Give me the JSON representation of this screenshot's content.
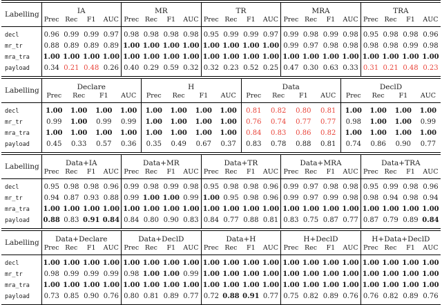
{
  "colors": {
    "text": "#1c1c1c",
    "highlight_red": "#e8443a",
    "rule": "#000000",
    "background": "#ffffff"
  },
  "labelling_header": "Labelling",
  "metrics": [
    "Prec",
    "Rec",
    "F1",
    "AUC"
  ],
  "chart_data": {
    "type": "table",
    "note_bold_marker": "*",
    "note_red_marker": "!"
  },
  "tables": [
    {
      "groups": [
        "IA",
        "MR",
        "TR",
        "MRA",
        "TRA"
      ],
      "rows": [
        {
          "label": "decl",
          "cells": [
            [
              "0.96",
              "0.99",
              "0.99",
              "0.97"
            ],
            [
              "0.98",
              "0.98",
              "0.98",
              "0.98"
            ],
            [
              "0.95",
              "0.99",
              "0.99",
              "0.97"
            ],
            [
              "0.99",
              "0.98",
              "0.99",
              "0.98"
            ],
            [
              "0.95",
              "0.98",
              "0.98",
              "0.96"
            ]
          ]
        },
        {
          "label": "mr_tr",
          "cells": [
            [
              "0.88",
              "0.89",
              "0.89",
              "0.89"
            ],
            [
              "*1.00",
              "*1.00",
              "*1.00",
              "*1.00"
            ],
            [
              "*1.00",
              "*1.00",
              "*1.00",
              "*1.00"
            ],
            [
              "0.99",
              "0.97",
              "0.98",
              "0.98"
            ],
            [
              "0.98",
              "0.98",
              "0.99",
              "0.98"
            ]
          ]
        },
        {
          "label": "mra_tra",
          "cells": [
            [
              "*1.00",
              "*1.00",
              "*1.00",
              "*1.00"
            ],
            [
              "*1.00",
              "*1.00",
              "*1.00",
              "*1.00"
            ],
            [
              "*1.00",
              "*1.00",
              "*1.00",
              "*1.00"
            ],
            [
              "*1.00",
              "*1.00",
              "*1.00",
              "*1.00"
            ],
            [
              "*1.00",
              "*1.00",
              "*1.00",
              "*1.00"
            ]
          ]
        },
        {
          "label": "payload",
          "cells": [
            [
              "0.34",
              "!0.21",
              "!0.48",
              "0.26"
            ],
            [
              "0.40",
              "0.29",
              "0.59",
              "0.32"
            ],
            [
              "0.32",
              "0.23",
              "0.52",
              "0.25"
            ],
            [
              "0.47",
              "0.30",
              "0.63",
              "0.33"
            ],
            [
              "!0.31",
              "!0.21",
              "!0.48",
              "!0.23"
            ]
          ]
        }
      ]
    },
    {
      "groups": [
        "Declare",
        "H",
        "Data",
        "DeclD"
      ],
      "rows": [
        {
          "label": "decl",
          "cells": [
            [
              "*1.00",
              "*1.00",
              "*1.00",
              "*1.00"
            ],
            [
              "*1.00",
              "*1.00",
              "*1.00",
              "*1.00"
            ],
            [
              "!0.81",
              "!0.82",
              "!0.80",
              "!0.81"
            ],
            [
              "*1.00",
              "*1.00",
              "*1.00",
              "*1.00"
            ]
          ]
        },
        {
          "label": "mr_tr",
          "cells": [
            [
              "0.99",
              "*1.00",
              "0.99",
              "0.99"
            ],
            [
              "*1.00",
              "*1.00",
              "*1.00",
              "*1.00"
            ],
            [
              "!0.76",
              "!0.74",
              "!0.77",
              "!0.77"
            ],
            [
              "0.98",
              "*1.00",
              "*1.00",
              "0.99"
            ]
          ]
        },
        {
          "label": "mra_tra",
          "cells": [
            [
              "*1.00",
              "*1.00",
              "*1.00",
              "*1.00"
            ],
            [
              "*1.00",
              "*1.00",
              "*1.00",
              "*1.00"
            ],
            [
              "!0.84",
              "!0.83",
              "!0.86",
              "!0.82"
            ],
            [
              "*1.00",
              "*1.00",
              "*1.00",
              "*1.00"
            ]
          ]
        },
        {
          "label": "payload",
          "cells": [
            [
              "0.45",
              "0.33",
              "0.57",
              "0.36"
            ],
            [
              "0.35",
              "0.49",
              "0.67",
              "0.37"
            ],
            [
              "0.83",
              "0.78",
              "0.88",
              "0.81"
            ],
            [
              "0.74",
              "0.86",
              "0.90",
              "0.77"
            ]
          ]
        }
      ]
    },
    {
      "groups": [
        "Data+IA",
        "Data+MR",
        "Data+TR",
        "Data+MRA",
        "Data+TRA"
      ],
      "rows": [
        {
          "label": "decl",
          "cells": [
            [
              "0.95",
              "0.98",
              "0.98",
              "0.96"
            ],
            [
              "0.99",
              "0.98",
              "0.99",
              "0.98"
            ],
            [
              "0.95",
              "0.98",
              "0.98",
              "0.96"
            ],
            [
              "0.99",
              "0.97",
              "0.98",
              "0.98"
            ],
            [
              "0.95",
              "0.99",
              "0.98",
              "0.96"
            ]
          ]
        },
        {
          "label": "mr_tr",
          "cells": [
            [
              "0.94",
              "0.87",
              "0.93",
              "0.88"
            ],
            [
              "0.99",
              "*1.00",
              "*1.00",
              "0.99"
            ],
            [
              "*1.00",
              "0.95",
              "0.98",
              "0.96"
            ],
            [
              "0.99",
              "0.97",
              "0.99",
              "0.98"
            ],
            [
              "0.98",
              "0.94",
              "0.98",
              "0.94"
            ]
          ]
        },
        {
          "label": "mra_tra",
          "cells": [
            [
              "*1.00",
              "*1.00",
              "*1.00",
              "*1.00"
            ],
            [
              "*1.00",
              "*1.00",
              "*1.00",
              "*1.00"
            ],
            [
              "*1.00",
              "*1.00",
              "*1.00",
              "*1.00"
            ],
            [
              "*1.00",
              "*1.00",
              "*1.00",
              "*1.00"
            ],
            [
              "*1.00",
              "*1.00",
              "*1.00",
              "*1.00"
            ]
          ]
        },
        {
          "label": "payload",
          "cells": [
            [
              "*0.88",
              "0.83",
              "*0.91",
              "*0.84"
            ],
            [
              "0.84",
              "0.80",
              "0.90",
              "0.83"
            ],
            [
              "0.84",
              "0.77",
              "0.88",
              "0.81"
            ],
            [
              "0.83",
              "0.75",
              "0.87",
              "0.77"
            ],
            [
              "0.87",
              "0.79",
              "0.89",
              "*0.84"
            ]
          ]
        }
      ]
    },
    {
      "groups": [
        "Data+Declare",
        "Data+DeclD",
        "Data+H",
        "H+DeclD",
        "H+Data+DeclD"
      ],
      "rows": [
        {
          "label": "decl",
          "cells": [
            [
              "*1.00",
              "*1.00",
              "*1.00",
              "*1.00"
            ],
            [
              "*1.00",
              "*1.00",
              "*1.00",
              "*1.00"
            ],
            [
              "*1.00",
              "*1.00",
              "*1.00",
              "*1.00"
            ],
            [
              "*1.00",
              "*1.00",
              "*1.00",
              "*1.00"
            ],
            [
              "*1.00",
              "*1.00",
              "*1.00",
              "*1.00"
            ]
          ]
        },
        {
          "label": "mr_tr",
          "cells": [
            [
              "0.98",
              "0.99",
              "0.99",
              "0.99"
            ],
            [
              "0.98",
              "*1.00",
              "*1.00",
              "0.99"
            ],
            [
              "*1.00",
              "*1.00",
              "*1.00",
              "*1.00"
            ],
            [
              "*1.00",
              "*1.00",
              "*1.00",
              "*1.00"
            ],
            [
              "*1.00",
              "*1.00",
              "*1.00",
              "*1.00"
            ]
          ]
        },
        {
          "label": "mra_tra",
          "cells": [
            [
              "*1.00",
              "*1.00",
              "*1.00",
              "*1.00"
            ],
            [
              "*1.00",
              "*1.00",
              "*1.00",
              "*1.00"
            ],
            [
              "*1.00",
              "*1.00",
              "*1.00",
              "*1.00"
            ],
            [
              "*1.00",
              "*1.00",
              "*1.00",
              "*1.00"
            ],
            [
              "*1.00",
              "*1.00",
              "*1.00",
              "*1.00"
            ]
          ]
        },
        {
          "label": "payload",
          "cells": [
            [
              "0.73",
              "0.85",
              "0.90",
              "0.76"
            ],
            [
              "0.80",
              "0.81",
              "0.89",
              "0.77"
            ],
            [
              "0.72",
              "*0.88",
              "*0.91",
              "0.77"
            ],
            [
              "0.75",
              "0.82",
              "0.89",
              "0.76"
            ],
            [
              "0.76",
              "0.82",
              "0.89",
              "0.76"
            ]
          ]
        }
      ]
    }
  ]
}
